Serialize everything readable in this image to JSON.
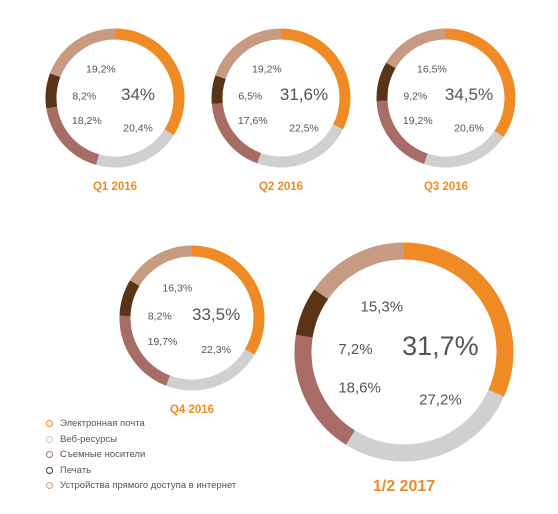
{
  "colors": {
    "email": "#F08A24",
    "web": "#D0D0D0",
    "removable": "#A86C66",
    "print": "#5A3417",
    "internet_devices": "#C79A82",
    "period_label": "#F08A24",
    "value_text": "#555555"
  },
  "legend": {
    "items": [
      {
        "label": "Электронная почта",
        "color": "#F08A24"
      },
      {
        "label": "Веб-ресурсы",
        "color": "#C8C8C8"
      },
      {
        "label": "Съемные носители",
        "color": "#A86C66"
      },
      {
        "label": "Печать",
        "color": "#5A3417"
      },
      {
        "label": "Устройства прямого доступа в интернет",
        "color": "#C79A82"
      }
    ]
  },
  "chart_data": [
    {
      "type": "pie",
      "period": "Q1 2016",
      "categories": [
        "Электронная почта",
        "Веб-ресурсы",
        "Съемные носители",
        "Печать",
        "Устройства прямого доступа в интернет"
      ],
      "values": [
        34,
        20.4,
        18.2,
        8.2,
        19.2
      ],
      "labels": [
        "34%",
        "20,4%",
        "18,2%",
        "8,2%",
        "19,2%"
      ]
    },
    {
      "type": "pie",
      "period": "Q2 2016",
      "categories": [
        "Электронная почта",
        "Веб-ресурсы",
        "Съемные носители",
        "Печать",
        "Устройства прямого доступа в интернет"
      ],
      "values": [
        31.6,
        22.5,
        17.6,
        6.5,
        19.2
      ],
      "labels": [
        "31,6%",
        "22,5%",
        "17,6%",
        "6,5%",
        "19,2%"
      ]
    },
    {
      "type": "pie",
      "period": "Q3 2016",
      "categories": [
        "Электронная почта",
        "Веб-ресурсы",
        "Съемные носители",
        "Печать",
        "Устройства прямого доступа в интернет"
      ],
      "values": [
        34.5,
        20.6,
        19.2,
        9.2,
        16.5
      ],
      "labels": [
        "34,5%",
        "20,6%",
        "19,2%",
        "9,2%",
        "16,5%"
      ]
    },
    {
      "type": "pie",
      "period": "Q4 2016",
      "categories": [
        "Электронная почта",
        "Веб-ресурсы",
        "Съемные носители",
        "Печать",
        "Устройства прямого доступа в интернет"
      ],
      "values": [
        33.5,
        22.3,
        19.7,
        8.2,
        16.3
      ],
      "labels": [
        "33,5%",
        "22,3%",
        "19,7%",
        "8,2%",
        "16,3%"
      ]
    },
    {
      "type": "pie",
      "period": "1/2 2017",
      "categories": [
        "Электронная почта",
        "Веб-ресурсы",
        "Съемные носители",
        "Печать",
        "Устройства прямого доступа в интернет"
      ],
      "values": [
        31.7,
        27.2,
        18.6,
        7.2,
        15.3
      ],
      "labels": [
        "31,7%",
        "27,2%",
        "18,6%",
        "7,2%",
        "15,3%"
      ]
    }
  ]
}
